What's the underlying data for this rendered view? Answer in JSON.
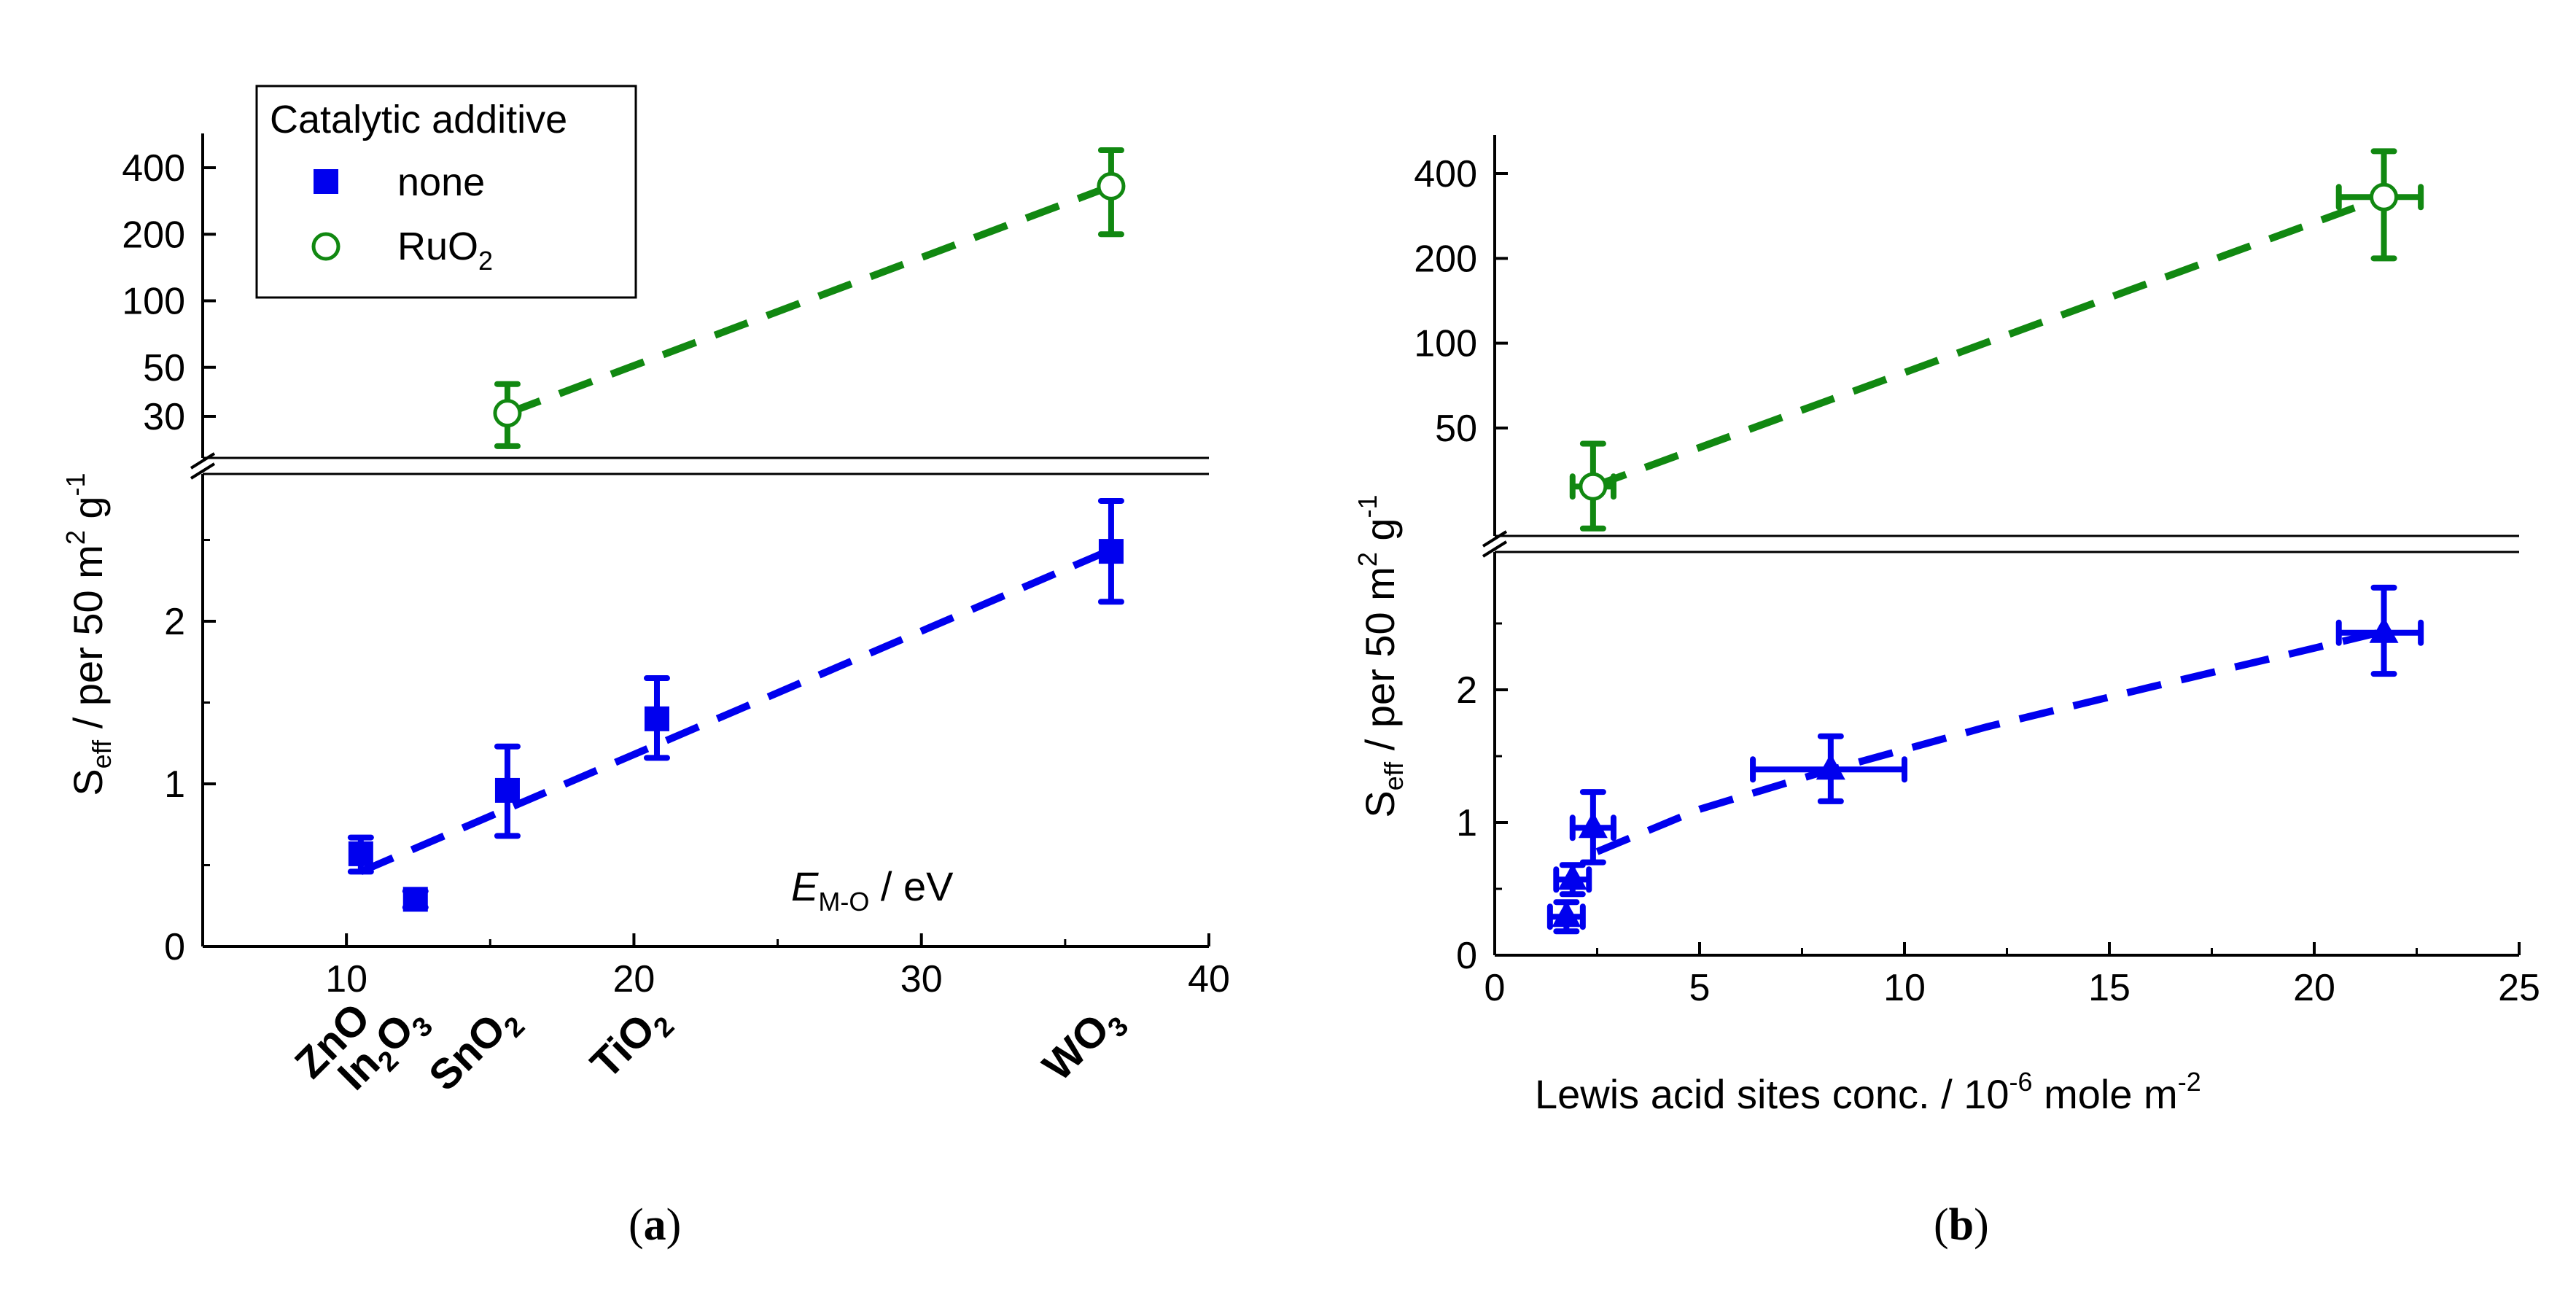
{
  "chart_data": [
    {
      "panel": "a",
      "type": "scatter",
      "caption": "a",
      "y_axis_break": true,
      "xlim": [
        5,
        40
      ],
      "x_ticks": [
        "10",
        "20",
        "30",
        "40"
      ],
      "x_axis_title": {
        "main": "E",
        "sub": "M-O",
        "rest": " / eV"
      },
      "y_axis_title": {
        "main": "S",
        "sub": "eff",
        "mid": " / per 50 m",
        "sup1": "2",
        "mid2": " g",
        "sup2": "-1"
      },
      "y_lower": {
        "ylim": [
          0,
          2.9
        ],
        "ticks": [
          "0",
          "1",
          "2"
        ]
      },
      "y_upper": {
        "scale": "log",
        "ylim": [
          20,
          600
        ],
        "ticks": [
          "30",
          "50",
          "100",
          "200",
          "400"
        ]
      },
      "category_labels": [
        {
          "x": 10.5,
          "name": "ZnO",
          "parts": [
            [
              "ZnO",
              ""
            ]
          ]
        },
        {
          "x": 12.4,
          "name": "In2O3",
          "parts": [
            [
              "In",
              "2"
            ],
            [
              "O",
              "3"
            ]
          ]
        },
        {
          "x": 15.6,
          "name": "SnO2",
          "parts": [
            [
              "SnO",
              "2"
            ]
          ]
        },
        {
          "x": 20.8,
          "name": "TiO2",
          "parts": [
            [
              "TiO",
              "2"
            ]
          ]
        },
        {
          "x": 36.6,
          "name": "WO3",
          "parts": [
            [
              "WO",
              "3"
            ]
          ]
        }
      ],
      "legend": {
        "title": "Catalytic additive",
        "entries": [
          {
            "label": "none",
            "marker": "filled-square",
            "color": "#0000ee"
          },
          {
            "label": "RuO",
            "sub": "2",
            "marker": "open-circle",
            "color": "#118811"
          }
        ],
        "placement": "top-left"
      },
      "series": [
        {
          "name": "none",
          "color": "#0000ee",
          "marker": "square",
          "segment": "lower",
          "points": [
            {
              "x": 10.5,
              "y": 0.57,
              "ylo": 0.46,
              "yhi": 0.67
            },
            {
              "x": 12.4,
              "y": 0.29,
              "ylo": 0.24,
              "yhi": 0.34
            },
            {
              "x": 15.6,
              "y": 0.96,
              "ylo": 0.68,
              "yhi": 1.23
            },
            {
              "x": 20.8,
              "y": 1.4,
              "ylo": 1.16,
              "yhi": 1.65
            },
            {
              "x": 36.6,
              "y": 2.43,
              "ylo": 2.12,
              "yhi": 2.74
            }
          ],
          "fit": {
            "x1": 10.5,
            "y1": 0.46,
            "x2": 36.6,
            "y2": 2.44
          }
        },
        {
          "name": "RuO2",
          "color": "#118811",
          "marker": "circle-open",
          "segment": "upper",
          "points": [
            {
              "x": 15.6,
              "y": 31,
              "ylo": 22,
              "yhi": 42
            },
            {
              "x": 36.6,
              "y": 330,
              "ylo": 200,
              "yhi": 480
            }
          ],
          "fit": {
            "x1": 15.6,
            "y1": 31,
            "x2": 36.6,
            "y2": 330
          }
        }
      ]
    },
    {
      "panel": "b",
      "type": "scatter",
      "caption": "b",
      "y_axis_break": true,
      "xlim": [
        0,
        25
      ],
      "x_ticks": [
        "0",
        "5",
        "10",
        "15",
        "20",
        "25"
      ],
      "x_axis_title": {
        "main": "Lewis acid sites conc. / 10",
        "sup1": "-6",
        "mid": " mole m",
        "sup2": "-2"
      },
      "y_axis_title": {
        "main": "S",
        "sub": "eff",
        "mid": " / per 50 m",
        "sup1": "2",
        "mid2": " g",
        "sup2": "-1"
      },
      "y_lower": {
        "ylim": [
          0,
          2.9
        ],
        "ticks": [
          "0",
          "1",
          "2"
        ]
      },
      "y_upper": {
        "scale": "log",
        "ylim": [
          20,
          600
        ],
        "ticks": [
          "50",
          "100",
          "200",
          "400"
        ]
      },
      "series": [
        {
          "name": "none",
          "color": "#0000ee",
          "marker": "triangle",
          "segment": "lower",
          "points": [
            {
              "x": 1.75,
              "y": 0.29,
              "xlo": 1.35,
              "xhi": 2.15,
              "ylo": 0.18,
              "yhi": 0.4
            },
            {
              "x": 1.9,
              "y": 0.57,
              "xlo": 1.5,
              "xhi": 2.3,
              "ylo": 0.46,
              "yhi": 0.68
            },
            {
              "x": 2.4,
              "y": 0.96,
              "xlo": 1.9,
              "xhi": 2.9,
              "ylo": 0.7,
              "yhi": 1.23
            },
            {
              "x": 8.2,
              "y": 1.4,
              "xlo": 6.3,
              "xhi": 10.0,
              "ylo": 1.16,
              "yhi": 1.65
            },
            {
              "x": 21.7,
              "y": 2.43,
              "xlo": 20.6,
              "xhi": 22.6,
              "ylo": 2.12,
              "yhi": 2.77
            }
          ],
          "fit_curve": [
            [
              2.5,
              0.78
            ],
            [
              5,
              1.1
            ],
            [
              8,
              1.38
            ],
            [
              12,
              1.72
            ],
            [
              16,
              2.02
            ],
            [
              19,
              2.24
            ],
            [
              21.7,
              2.44
            ]
          ]
        },
        {
          "name": "RuO2",
          "color": "#118811",
          "marker": "circle-open",
          "segment": "upper",
          "points": [
            {
              "x": 2.4,
              "y": 31,
              "xlo": 1.9,
              "xhi": 2.9,
              "ylo": 22,
              "yhi": 44
            },
            {
              "x": 21.7,
              "y": 330,
              "xlo": 20.6,
              "xhi": 22.6,
              "ylo": 200,
              "yhi": 480
            }
          ],
          "fit": {
            "x1": 2.4,
            "y1": 31,
            "x2": 21.7,
            "y2": 330
          }
        }
      ]
    }
  ]
}
